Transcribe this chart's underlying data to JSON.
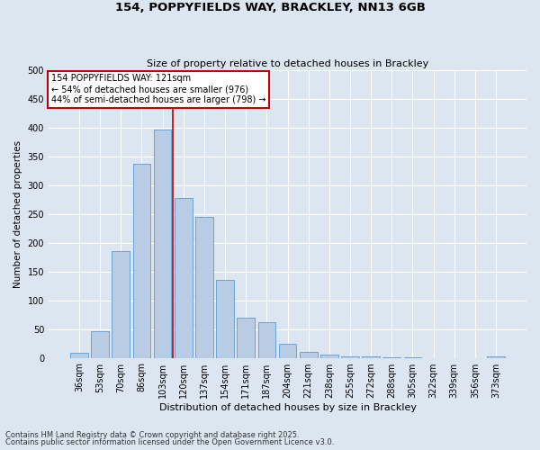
{
  "title1": "154, POPPYFIELDS WAY, BRACKLEY, NN13 6GB",
  "title2": "Size of property relative to detached houses in Brackley",
  "xlabel": "Distribution of detached houses by size in Brackley",
  "ylabel": "Number of detached properties",
  "categories": [
    "36sqm",
    "53sqm",
    "70sqm",
    "86sqm",
    "103sqm",
    "120sqm",
    "137sqm",
    "154sqm",
    "171sqm",
    "187sqm",
    "204sqm",
    "221sqm",
    "238sqm",
    "255sqm",
    "272sqm",
    "288sqm",
    "305sqm",
    "322sqm",
    "339sqm",
    "356sqm",
    "373sqm"
  ],
  "values": [
    8,
    46,
    186,
    337,
    397,
    277,
    245,
    135,
    70,
    62,
    25,
    11,
    5,
    3,
    2,
    1,
    1,
    0,
    0,
    0,
    3
  ],
  "bar_color": "#b8cce4",
  "bar_edge_color": "#5b9bd5",
  "vline_index": 5,
  "vline_color": "#c00000",
  "annotation_text": "154 POPPYFIELDS WAY: 121sqm\n← 54% of detached houses are smaller (976)\n44% of semi-detached houses are larger (798) →",
  "annotation_box_facecolor": "#ffffff",
  "annotation_border_color": "#c00000",
  "bg_color": "#dce6f1",
  "footer1": "Contains HM Land Registry data © Crown copyright and database right 2025.",
  "footer2": "Contains public sector information licensed under the Open Government Licence v3.0.",
  "ylim": [
    0,
    500
  ],
  "yticks": [
    0,
    50,
    100,
    150,
    200,
    250,
    300,
    350,
    400,
    450,
    500
  ],
  "title1_fontsize": 9.5,
  "title2_fontsize": 8,
  "xlabel_fontsize": 8,
  "ylabel_fontsize": 7.5,
  "tick_fontsize": 7,
  "footer_fontsize": 6,
  "grid_color": "#ffffff",
  "grid_linewidth": 0.8
}
